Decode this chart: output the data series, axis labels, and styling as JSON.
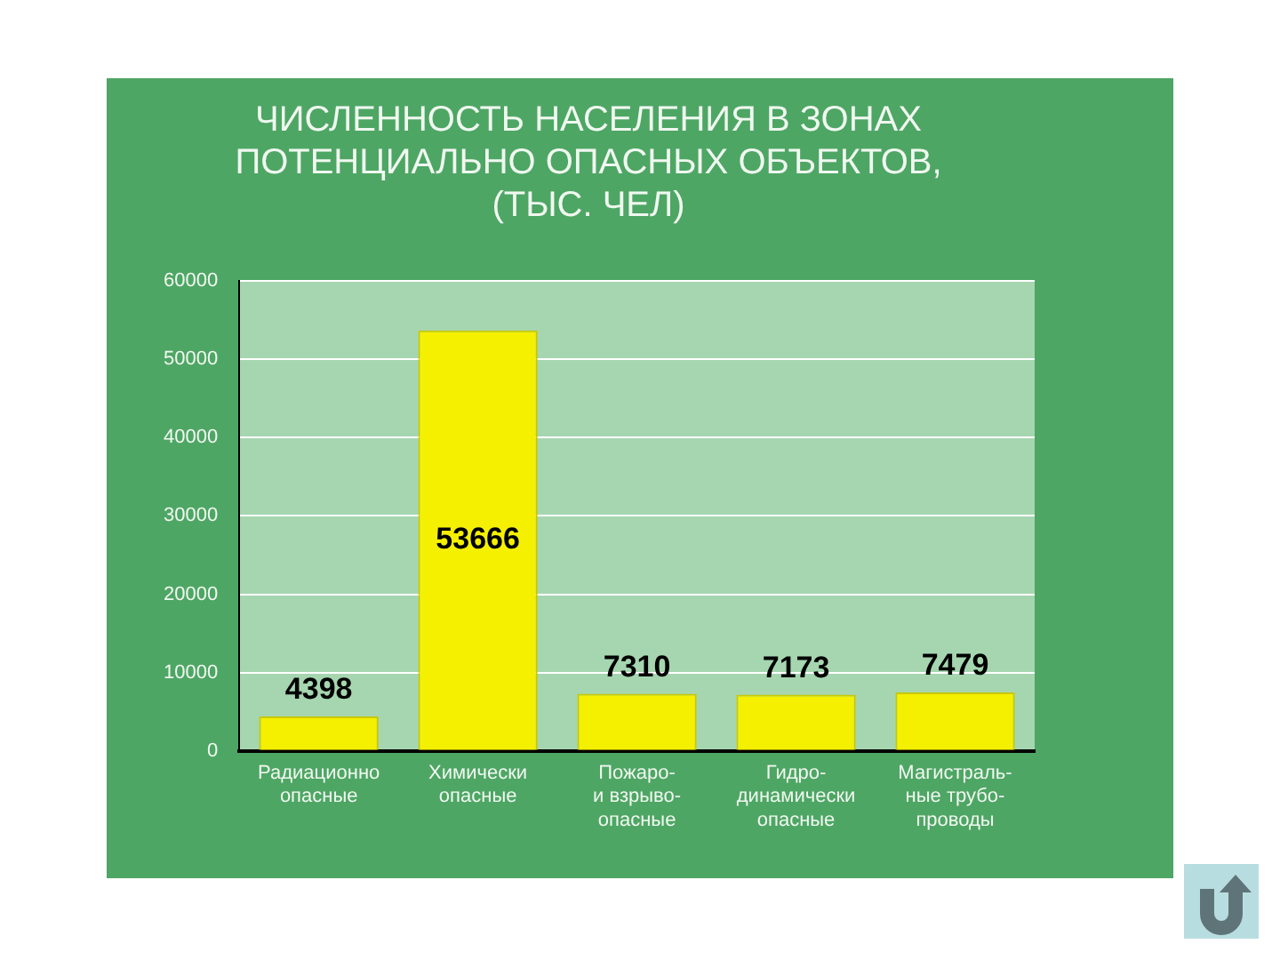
{
  "chart_data": {
    "type": "bar",
    "title": "ЧИСЛЕННОСТЬ НАСЕЛЕНИЯ В ЗОНАХ\nПОТЕНЦИАЛЬНО ОПАСНЫХ ОБЪЕКТОВ,\n(ТЫС. ЧЕЛ)",
    "categories": [
      "Радиационно\nопасные",
      "Химически\nопасные",
      "Пожаро-\nи взрыво-\nопасные",
      "Гидро-\nдинамически\nопасные",
      "Магистраль-\nные трубо-\nпроводы"
    ],
    "values": [
      4398,
      53666,
      7310,
      7173,
      7479
    ],
    "color": "#f4f000",
    "ylim": [
      0,
      60000
    ],
    "yticks": [
      0,
      10000,
      20000,
      30000,
      40000,
      50000,
      60000
    ],
    "grid": "y",
    "data_labels": true
  }
}
